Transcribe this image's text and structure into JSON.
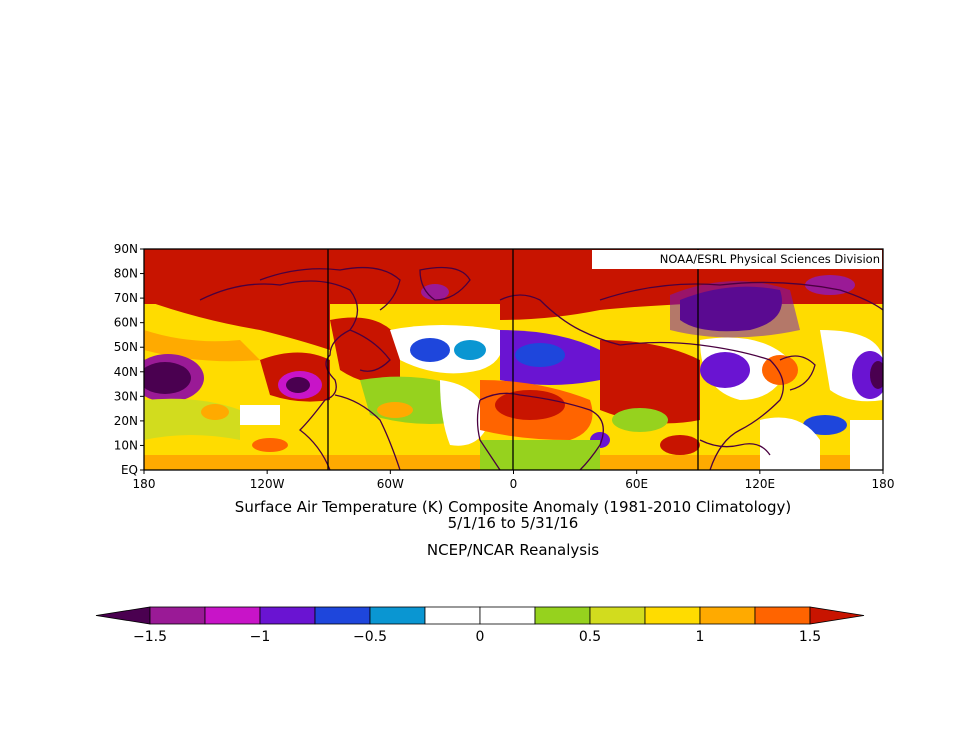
{
  "credit": "NOAA/ESRL Physical Sciences Division",
  "title_line1": "Surface Air Temperature (K) Composite Anomaly (1981-2010 Climatology)",
  "title_line2": "5/1/16  to 5/31/16",
  "title_line3": "NCEP/NCAR Reanalysis",
  "map": {
    "projection": "cylindrical",
    "lon_range": [
      -180,
      180
    ],
    "lat_range": [
      0,
      90
    ],
    "lat_labels": [
      "90N",
      "80N",
      "70N",
      "60N",
      "50N",
      "40N",
      "30N",
      "20N",
      "10N",
      "EQ"
    ],
    "lon_labels": [
      "180",
      "120W",
      "60W",
      "0",
      "60E",
      "120E",
      "180"
    ]
  },
  "colorbar": {
    "colors": [
      "#4a0050",
      "#9a1a96",
      "#c814c8",
      "#6a14d2",
      "#1e46dc",
      "#0a96d2",
      "#ffffff",
      "#ffffff",
      "#96d21e",
      "#d2dc1e",
      "#ffdc00",
      "#ffaa00",
      "#ff6400",
      "#c81400"
    ],
    "tick_labels": [
      "-1.5",
      "-1",
      "-0.5",
      "0",
      "0.5",
      "1",
      "1.5"
    ]
  },
  "colors": {
    "warm": "#c81400",
    "cold": "#4a0050",
    "neutral": "#ffffff",
    "coast": "#4a0040"
  }
}
